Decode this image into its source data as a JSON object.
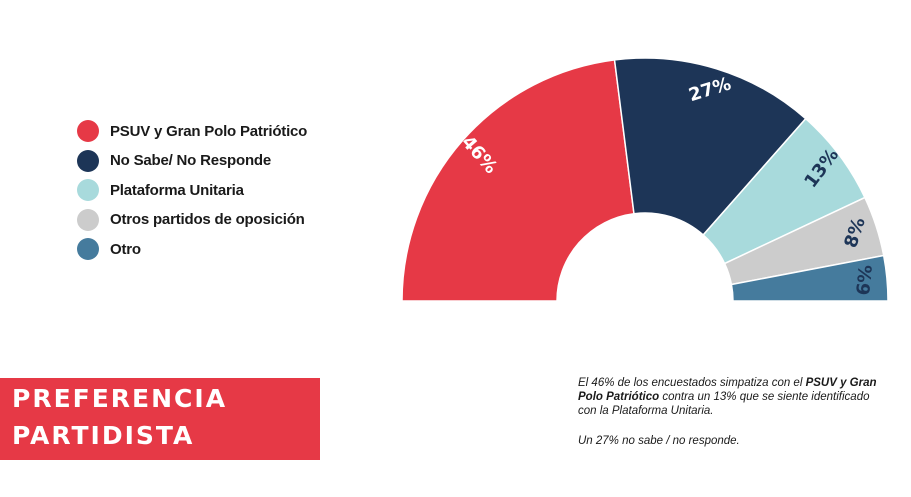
{
  "chart_data": {
    "type": "pie",
    "variant": "semicircle-donut",
    "categories": [
      "PSUV y Gran Polo Patriótico",
      "No Sabe/ No Responde",
      "Plataforma Unitaria",
      "Otros partidos de oposición",
      "Otro"
    ],
    "values": [
      46,
      27,
      13,
      8,
      6
    ],
    "value_labels": [
      "46%",
      "27%",
      "13%",
      "8%",
      "6%"
    ],
    "colors": [
      "#e63946",
      "#1d3557",
      "#a8dadc",
      "#cccccc",
      "#457b9d"
    ],
    "legend_position": "left"
  },
  "title": {
    "line1": "PREFERENCIA",
    "line2": "PARTIDISTA"
  },
  "note": {
    "line1_prefix": "El 46% de los encuestados simpatiza con el ",
    "line1_bold": "PSUV y Gran Polo Patriótico",
    "line1_suffix": " contra un 13% que se siente identificado con la Plataforma Unitaria.",
    "line2": "Un 27% no sabe / no responde."
  }
}
